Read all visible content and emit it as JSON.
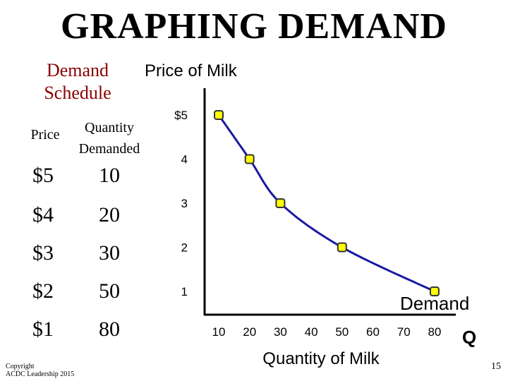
{
  "page_title": "GRAPHING DEMAND",
  "schedule": {
    "title_line1": "Demand",
    "title_line2": "Schedule",
    "price_header": "Price",
    "qty_header_line1": "Quantity",
    "qty_header_line2": "Demanded",
    "rows": [
      {
        "price": "$5",
        "qty": "10"
      },
      {
        "price": "$4",
        "qty": "20"
      },
      {
        "price": "$3",
        "qty": "30"
      },
      {
        "price": "$2",
        "qty": "50"
      },
      {
        "price": "$1",
        "qty": "80"
      }
    ]
  },
  "copyright": {
    "line1": "Copyright",
    "line2": "ACDC Leadership 2015"
  },
  "page_number": "15",
  "chart_data": {
    "type": "line",
    "title": "Price of Milk",
    "xlabel": "Quantity of Milk",
    "x_axis_symbol": "Q",
    "x_ticks": [
      "10",
      "20",
      "30",
      "40",
      "50",
      "60",
      "70",
      "80"
    ],
    "y_ticks": [
      "$5",
      "4",
      "3",
      "2",
      "1"
    ],
    "series": [
      {
        "name": "Demand",
        "x": [
          10,
          20,
          30,
          50,
          80
        ],
        "y": [
          5,
          4,
          3,
          2,
          1
        ]
      }
    ],
    "xlim": [
      0,
      80
    ],
    "ylim": [
      0,
      5
    ],
    "grid": false,
    "colors": {
      "line": "#1a1aa0",
      "marker_fill": "#ffff00",
      "marker_stroke": "#333333"
    }
  }
}
